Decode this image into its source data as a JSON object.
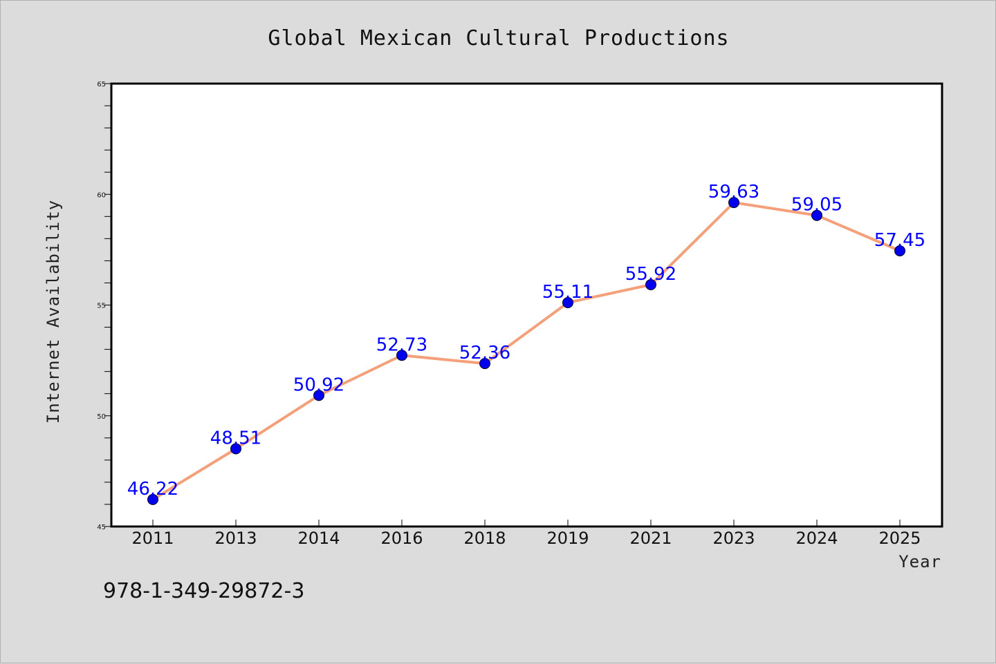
{
  "chart_data": {
    "type": "line",
    "title": "Global Mexican Cultural Productions",
    "xlabel": "Year",
    "ylabel": "Internet Availability",
    "categories": [
      "2011",
      "2013",
      "2014",
      "2016",
      "2018",
      "2019",
      "2021",
      "2023",
      "2024",
      "2025"
    ],
    "series": [
      {
        "values": [
          46.22,
          48.51,
          50.92,
          52.73,
          52.36,
          55.11,
          55.92,
          59.63,
          59.05,
          57.45
        ],
        "data_labels": [
          "46.22",
          "48.51",
          "50.92",
          "52.73",
          "52.36",
          "55.11",
          "55.92",
          "59.63",
          "59.05",
          "57.45"
        ]
      }
    ],
    "ylim": [
      45,
      65
    ],
    "yticks": [
      "45",
      "50",
      "55",
      "60",
      "65"
    ],
    "grid": false,
    "line_color": "#f4a07a",
    "marker_color": "#0000ee",
    "label_color": "#0000ff"
  },
  "footer": {
    "isbn": "978-1-349-29872-3"
  },
  "colors": {
    "background": "#dcdcdc",
    "plot_background": "#ffffff"
  }
}
